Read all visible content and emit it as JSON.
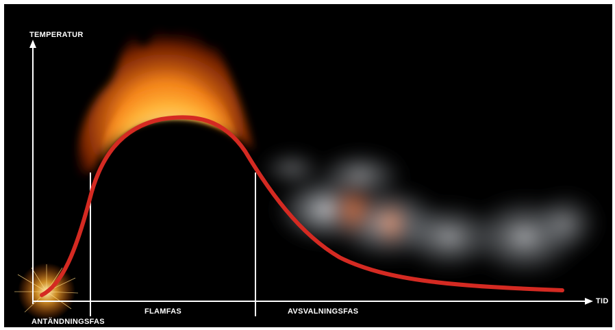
{
  "axes": {
    "y_label": "TEMPERATUR",
    "x_label": "TID"
  },
  "phases": [
    {
      "label": "ANTÄNDNINGSFAS"
    },
    {
      "label": "FLAMFAS"
    },
    {
      "label": "AVSVALNINGSFAS"
    }
  ],
  "colors": {
    "background": "#000000",
    "curve": "#d42a22",
    "axis": "#ffffff",
    "flame": "#ff8a1c",
    "smoke": "#c8ccd2"
  },
  "icons": [
    "ignition-spark-icon",
    "flame-icon",
    "smoke-icon"
  ]
}
